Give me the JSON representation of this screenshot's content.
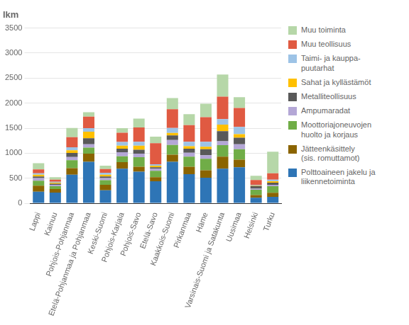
{
  "chart_data": {
    "type": "bar",
    "stacked": true,
    "ylabel": "lkm",
    "categories": [
      "Lappi",
      "Kainuu",
      "Pohjois-Pohjanmaa",
      "Etelä-Pohjanmaa ja Pohjanmaa",
      "Keski-Suomi",
      "Pohjois-Karjala",
      "Pohjois-Savo",
      "Etelä-Savo",
      "Kaakkois-Suomi",
      "Pirkanmaa",
      "Häme",
      "Varsinais-Suomi ja Satakunta",
      "Uusimaa",
      "Helsinki",
      "Turku"
    ],
    "series": [
      {
        "name": "Polttoaineen jakelu ja\nliikennetoiminta",
        "color": "#2e75b6",
        "values": [
          230,
          215,
          570,
          830,
          260,
          690,
          630,
          440,
          830,
          580,
          510,
          690,
          720,
          110,
          130
        ]
      },
      {
        "name": "Jätteenkäsittely\n(sis. romuttamot)",
        "color": "#8b6400",
        "values": [
          120,
          70,
          130,
          160,
          110,
          130,
          100,
          80,
          140,
          150,
          150,
          240,
          150,
          55,
          80
        ]
      },
      {
        "name": "Moottoriajoneuvojen\nhuolto ja korjaus",
        "color": "#70ad47",
        "values": [
          100,
          55,
          160,
          120,
          90,
          120,
          190,
          130,
          195,
          200,
          230,
          230,
          210,
          105,
          130
        ]
      },
      {
        "name": "Ampumaradat",
        "color": "#b4a7d6",
        "values": [
          55,
          30,
          65,
          70,
          45,
          80,
          70,
          40,
          100,
          80,
          70,
          80,
          100,
          20,
          30
        ]
      },
      {
        "name": "Metalliteollisuus",
        "color": "#595959",
        "values": [
          30,
          20,
          80,
          120,
          30,
          70,
          80,
          30,
          90,
          80,
          120,
          200,
          130,
          55,
          40
        ]
      },
      {
        "name": "Sahat ja kyllästämöt",
        "color": "#ffc000",
        "values": [
          35,
          20,
          55,
          130,
          35,
          60,
          80,
          30,
          50,
          50,
          50,
          130,
          70,
          10,
          30
        ]
      },
      {
        "name": "Taimi- ja kauppa-\npuutarhat",
        "color": "#9dc3e6",
        "values": [
          30,
          20,
          60,
          70,
          40,
          75,
          80,
          30,
          100,
          90,
          100,
          110,
          145,
          10,
          30
        ]
      },
      {
        "name": "Muu teollisuus",
        "color": "#e05a42",
        "values": [
          75,
          40,
          200,
          230,
          75,
          185,
          285,
          420,
          375,
          330,
          490,
          450,
          380,
          100,
          130
        ]
      },
      {
        "name": "Muu toiminta",
        "color": "#b6d7a8",
        "values": [
          125,
          50,
          185,
          90,
          65,
          90,
          175,
          130,
          220,
          220,
          270,
          440,
          215,
          85,
          430
        ]
      }
    ],
    "ylim": [
      0,
      3500
    ],
    "yticks": [
      0,
      500,
      1000,
      1500,
      2000,
      2500,
      3000,
      3500
    ],
    "grid": true,
    "legend": "right"
  }
}
